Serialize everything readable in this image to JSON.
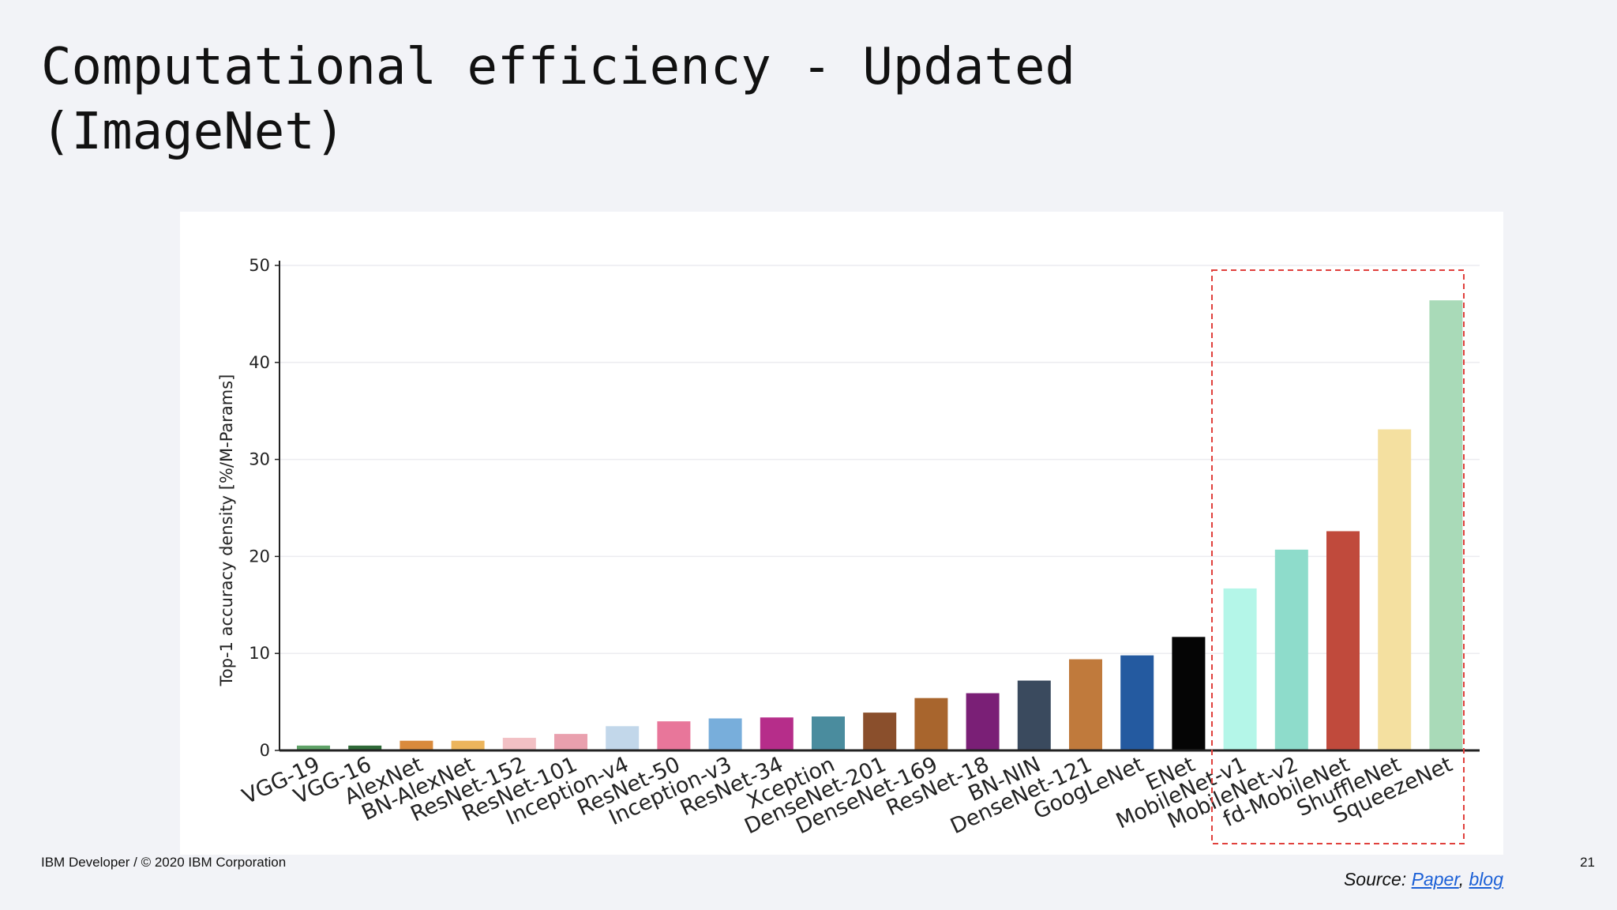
{
  "slide": {
    "title": "Computational efficiency - Updated\n(ImageNet)",
    "footer": "IBM Developer / © 2020 IBM Corporation",
    "page_number": "21",
    "source_label": "Source:",
    "source_links": [
      "Paper",
      "blog"
    ],
    "source_separator": ", "
  },
  "chart_data": {
    "type": "bar",
    "title": "",
    "xlabel": "",
    "ylabel": "Top-1 accuracy density [%/M-Params]",
    "ylim": [
      0,
      50
    ],
    "yticks": [
      0,
      10,
      20,
      30,
      40,
      50
    ],
    "grid": true,
    "categories": [
      "VGG-19",
      "VGG-16",
      "AlexNet",
      "BN-AlexNet",
      "ResNet-152",
      "ResNet-101",
      "Inception-v4",
      "ResNet-50",
      "Inception-v3",
      "ResNet-34",
      "Xception",
      "DenseNet-201",
      "DenseNet-169",
      "ResNet-18",
      "BN-NIN",
      "DenseNet-121",
      "GoogLeNet",
      "ENet",
      "MobileNet-v1",
      "MobileNet-v2",
      "fd-MobileNet",
      "ShuffleNet",
      "SqueezeNet"
    ],
    "values": [
      0.5,
      0.5,
      1.0,
      1.0,
      1.3,
      1.7,
      2.5,
      3.0,
      3.3,
      3.4,
      3.5,
      3.9,
      5.4,
      5.9,
      7.2,
      9.4,
      9.8,
      11.7,
      16.7,
      20.7,
      22.6,
      33.1,
      46.4
    ],
    "colors": [
      "#5fa267",
      "#2f6a38",
      "#d98a3c",
      "#ecb55c",
      "#f2c0c4",
      "#e9a0ae",
      "#c2d7ea",
      "#e8769a",
      "#78aedb",
      "#b62d8a",
      "#4a8c9e",
      "#8a4f2c",
      "#a8652d",
      "#7a1f76",
      "#3a4a5e",
      "#c07a3c",
      "#245aa0",
      "#050505",
      "#b4f6e8",
      "#8edccb",
      "#c04a3c",
      "#f4e0a0",
      "#a9dab8"
    ],
    "highlight": {
      "from": "MobileNet-v1",
      "to": "SqueezeNet",
      "style": "dashed",
      "color": "#e0403c"
    }
  }
}
